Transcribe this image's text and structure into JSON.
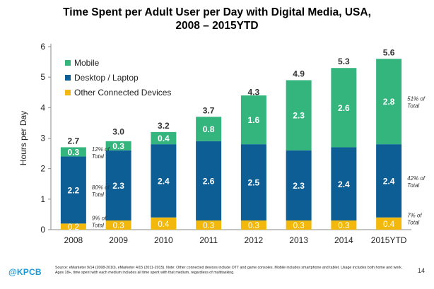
{
  "title_line1": "Time Spent per Adult User per Day with Digital Media, USA,",
  "title_line2": "2008 – 2015YTD",
  "colors": {
    "mobile": "#34b57e",
    "desktop": "#0d5e95",
    "other": "#f2b90c"
  },
  "chart_data": {
    "type": "bar",
    "stacked": true,
    "title": "Time Spent per Adult User per Day with Digital Media, USA, 2008 – 2015YTD",
    "xlabel": "",
    "ylabel": "Hours per Day",
    "ylim": [
      0,
      6
    ],
    "yticks": [
      "0",
      "1",
      "2",
      "3",
      "4",
      "5",
      "6"
    ],
    "categories": [
      "2008",
      "2009",
      "2010",
      "2011",
      "2012",
      "2013",
      "2014",
      "2015YTD"
    ],
    "series": [
      {
        "name": "Other Connected Devices",
        "key": "other",
        "values": [
          0.2,
          0.3,
          0.4,
          0.3,
          0.3,
          0.3,
          0.3,
          0.4
        ],
        "labels": [
          "0.2",
          "0.3",
          "0.4",
          "0.3",
          "0.3",
          "0.3",
          "0.3",
          "0.4"
        ]
      },
      {
        "name": "Desktop / Laptop",
        "key": "desktop",
        "values": [
          2.2,
          2.3,
          2.4,
          2.6,
          2.5,
          2.3,
          2.4,
          2.4
        ],
        "labels": [
          "2.2",
          "2.3",
          "2.4",
          "2.6",
          "2.5",
          "2.3",
          "2.4",
          "2.4"
        ]
      },
      {
        "name": "Mobile",
        "key": "mobile",
        "values": [
          0.3,
          0.3,
          0.4,
          0.8,
          1.6,
          2.3,
          2.6,
          2.8
        ],
        "labels": [
          "0.3",
          "0.3",
          "0.4",
          "0.8",
          "1.6",
          "2.3",
          "2.6",
          "2.8"
        ]
      }
    ],
    "totals": [
      2.7,
      3.0,
      3.2,
      3.7,
      4.3,
      4.9,
      5.3,
      5.6
    ],
    "total_labels": [
      "2.7",
      "3.0",
      "3.2",
      "3.7",
      "4.3",
      "4.9",
      "5.3",
      "5.6"
    ],
    "legend": {
      "placement": "top-left",
      "items": [
        {
          "label": "Mobile",
          "key": "mobile"
        },
        {
          "label": "Desktop / Laptop",
          "key": "desktop"
        },
        {
          "label": "Other Connected Devices",
          "key": "other"
        }
      ]
    },
    "annotations": [
      {
        "category": "2008",
        "series": "mobile",
        "line1": "12% of",
        "line2": "Total"
      },
      {
        "category": "2008",
        "series": "desktop",
        "line1": "80% of",
        "line2": "Total"
      },
      {
        "category": "2008",
        "series": "other",
        "line1": "9% of",
        "line2": "Total"
      },
      {
        "category": "2015YTD",
        "series": "mobile",
        "line1": "51% of",
        "line2": "Total"
      },
      {
        "category": "2015YTD",
        "series": "desktop",
        "line1": "42% of",
        "line2": "Total"
      },
      {
        "category": "2015YTD",
        "series": "other",
        "line1": "7% of",
        "line2": "Total"
      }
    ],
    "grid": false
  },
  "footer": {
    "brand": "KPCB",
    "brand_at": "@",
    "source": "Source: eMarketer 9/14 (2008-2010), eMarketer 4/15 (2011-2015). Note: Other connected devices include OTT and game consoles. Mobile includes smartphone and tablet. Usage includes both home and work. Ages 18+, time spent with each medium includes all time spent with that medium, regardless of multitasking.",
    "page_number": "14"
  }
}
